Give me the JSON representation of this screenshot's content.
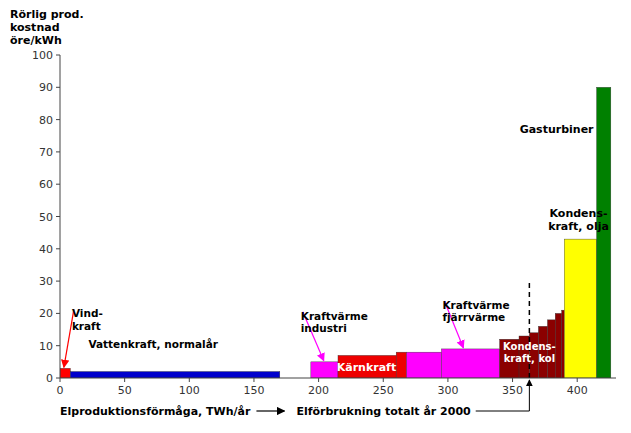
{
  "chart_data": {
    "type": "bar",
    "ylabel": "Rörlig prod.\nkostnad\nöre/kWh",
    "xlabel": "Elproduktionsförmåga, TWh/år",
    "x_start": [
      0,
      8,
      194,
      215,
      260,
      268,
      295,
      340,
      355,
      363,
      370,
      377,
      383,
      388,
      390,
      415
    ],
    "x_end": [
      8,
      170,
      215,
      260,
      268,
      295,
      340,
      355,
      363,
      370,
      377,
      383,
      388,
      390,
      415,
      426
    ],
    "values": [
      3,
      2,
      5,
      7,
      8,
      8,
      9,
      12,
      13,
      14,
      16,
      18,
      20,
      21,
      43,
      90
    ],
    "colors": [
      "#FF0000",
      "#0000CC",
      "#FF00FF",
      "#EE0000",
      "#EE0000",
      "#FF00FF",
      "#FF00FF",
      "#8B0000",
      "#8B0000",
      "#8B0000",
      "#8B0000",
      "#8B0000",
      "#8B0000",
      "#8B0000",
      "#FFFF00",
      "#008000"
    ],
    "xlim": [
      0,
      430
    ],
    "ylim": [
      0,
      100
    ],
    "xticks": [
      0,
      50,
      100,
      150,
      200,
      250,
      300,
      350,
      400
    ],
    "yticks": [
      0,
      10,
      20,
      30,
      40,
      50,
      60,
      70,
      80,
      90,
      100
    ],
    "grid": false,
    "reference_line": {
      "x": 363,
      "y": 30,
      "label": "Elförbrukning totalt år 2000"
    },
    "annotations": [
      {
        "text": "Vind-\nkraft",
        "x": 3,
        "y": 3,
        "color": "#FF0000"
      },
      {
        "text": "Vattenkraft, normalår",
        "x": 80,
        "y": 2
      },
      {
        "text": "Kraftvärme\nindustri",
        "x": 204,
        "y": 5,
        "color": "#FF00FF"
      },
      {
        "text": "Kraftvärme\nfjärrvärme",
        "x": 312,
        "y": 9,
        "color": "#FF00FF"
      },
      {
        "text": "Kärnkraft",
        "x": 237,
        "y": 3.5
      },
      {
        "text": "Kondens-\nkraft, kol",
        "x": 363,
        "y": 11
      },
      {
        "text": "Kondens-\nkraft, olja",
        "x": 401,
        "y": 49
      },
      {
        "text": "Gasturbiner",
        "x": 384,
        "y": 77
      }
    ]
  }
}
